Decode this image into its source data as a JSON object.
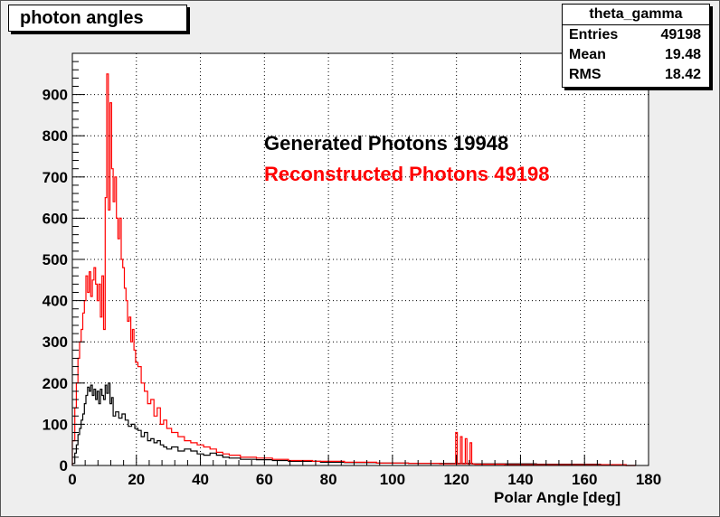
{
  "title": "photon angles",
  "stats": {
    "name": "theta_gamma",
    "rows": [
      {
        "label": "Entries",
        "value": "49198"
      },
      {
        "label": "Mean",
        "value": "19.48"
      },
      {
        "label": "RMS",
        "value": "18.42"
      }
    ]
  },
  "legend": {
    "generated": "Generated Photons 19948",
    "reconstructed": "Reconstructed Photons 49198"
  },
  "colors": {
    "generated": "#000000",
    "reconstructed": "#ff0000",
    "grid": "#000000"
  },
  "chart_data": {
    "type": "line",
    "title": "photon angles",
    "xlabel": "Polar Angle [deg]",
    "ylabel": "",
    "xlim": [
      0,
      180
    ],
    "ylim": [
      0,
      1000
    ],
    "grid": true,
    "xticks": [
      0,
      20,
      40,
      60,
      80,
      100,
      120,
      140,
      160,
      180
    ],
    "yticks": [
      0,
      100,
      200,
      300,
      400,
      500,
      600,
      700,
      800,
      900
    ],
    "series": [
      {
        "name": "Generated Photons 19948",
        "x": [
          0.5,
          1,
          1.5,
          2,
          2.5,
          3,
          3.5,
          4,
          4.5,
          5,
          5.5,
          6,
          6.5,
          7,
          7.5,
          8,
          8.5,
          9,
          9.5,
          10,
          10.5,
          11,
          11.5,
          12,
          12.5,
          13,
          14,
          15,
          16,
          17,
          18,
          19,
          20,
          21,
          22,
          23,
          24,
          25,
          26,
          27,
          28,
          29,
          30,
          32,
          34,
          36,
          38,
          40,
          42,
          44,
          46,
          48,
          50,
          55,
          60,
          65,
          70,
          75,
          80,
          90,
          100,
          110,
          120,
          130,
          140,
          150,
          160,
          170,
          176
        ],
        "values": [
          5,
          30,
          50,
          75,
          90,
          110,
          125,
          150,
          170,
          190,
          180,
          195,
          170,
          185,
          160,
          180,
          150,
          185,
          170,
          160,
          195,
          175,
          200,
          150,
          165,
          120,
          130,
          115,
          125,
          110,
          95,
          100,
          90,
          85,
          70,
          80,
          60,
          65,
          55,
          60,
          50,
          45,
          40,
          45,
          35,
          40,
          35,
          28,
          25,
          30,
          25,
          20,
          18,
          15,
          14,
          12,
          10,
          10,
          8,
          7,
          6,
          5,
          5,
          4,
          4,
          3,
          3,
          2,
          0
        ]
      },
      {
        "name": "Reconstructed Photons 49198",
        "x": [
          0.5,
          1,
          1.5,
          2,
          2.5,
          3,
          3.5,
          4,
          4.5,
          5,
          5.5,
          6,
          6.5,
          7,
          7.5,
          8,
          8.5,
          9,
          9.5,
          10,
          10.5,
          11,
          11.5,
          12,
          12.5,
          13,
          13.5,
          14,
          14.5,
          15,
          15.5,
          16,
          16.5,
          17,
          17.5,
          18,
          18.5,
          19,
          19.5,
          20,
          21,
          22,
          23,
          24,
          25,
          26,
          27,
          28,
          29,
          30,
          32,
          34,
          36,
          38,
          40,
          42,
          44,
          46,
          48,
          50,
          55,
          60,
          65,
          70,
          80,
          90,
          100,
          110,
          119.5,
          120,
          120.5,
          121,
          121.5,
          122,
          122.5,
          123,
          123.5,
          124,
          124.5,
          125,
          125.5,
          126,
          126.5,
          127,
          130,
          140,
          150,
          160,
          170,
          176
        ],
        "values": [
          60,
          140,
          200,
          260,
          300,
          330,
          370,
          400,
          460,
          420,
          470,
          410,
          450,
          480,
          440,
          400,
          440,
          360,
          460,
          330,
          650,
          950,
          620,
          880,
          720,
          640,
          700,
          600,
          550,
          600,
          500,
          480,
          430,
          400,
          350,
          360,
          300,
          330,
          280,
          250,
          240,
          200,
          180,
          150,
          160,
          120,
          140,
          100,
          110,
          90,
          80,
          70,
          60,
          55,
          50,
          45,
          40,
          32,
          28,
          25,
          20,
          18,
          15,
          12,
          10,
          8,
          6,
          5,
          4,
          80,
          4,
          4,
          70,
          4,
          4,
          65,
          4,
          4,
          55,
          4,
          4,
          3,
          3,
          3,
          3,
          2,
          2,
          2,
          2,
          0
        ]
      }
    ]
  }
}
